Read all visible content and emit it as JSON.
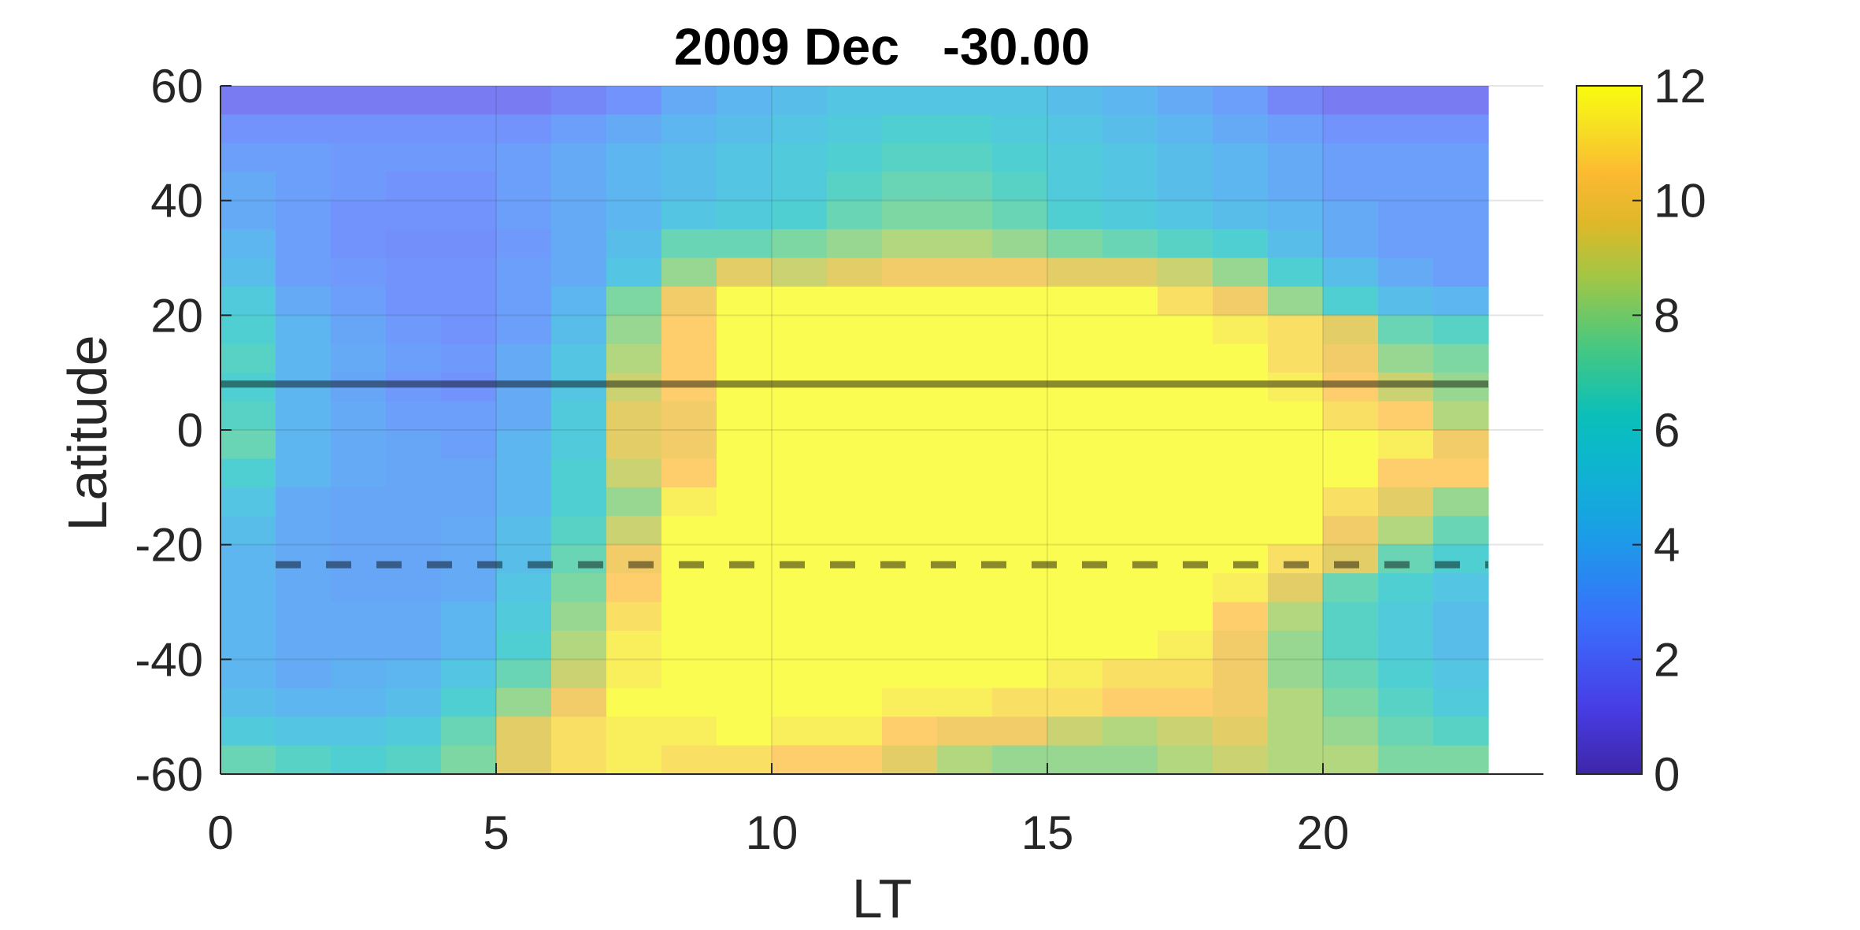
{
  "chart_data": {
    "type": "heatmap",
    "title": "2009 Dec   -30.00",
    "xlabel": "LT",
    "ylabel": "Latitude",
    "xlim": [
      0,
      24
    ],
    "ylim": [
      -60,
      60
    ],
    "data_x_range": [
      0,
      23
    ],
    "x_ticks": [
      0,
      5,
      10,
      15,
      20
    ],
    "y_ticks": [
      -60,
      -40,
      -20,
      0,
      20,
      40,
      60
    ],
    "colorbar": {
      "min": 0,
      "max": 12,
      "ticks": [
        0,
        2,
        4,
        6,
        8,
        10,
        12
      ]
    },
    "colormap": "parula",
    "grid": true,
    "x_centers": [
      0.5,
      1.5,
      2.5,
      3.5,
      4.5,
      5.5,
      6.5,
      7.5,
      8.5,
      9.5,
      10.5,
      11.5,
      12.5,
      13.5,
      14.5,
      15.5,
      16.5,
      17.5,
      18.5,
      19.5,
      20.5,
      21.5,
      22.5
    ],
    "lat_centers": [
      57.5,
      52.5,
      47.5,
      42.5,
      37.5,
      32.5,
      27.5,
      22.5,
      17.5,
      12.5,
      7.5,
      2.5,
      -2.5,
      -7.5,
      -12.5,
      -17.5,
      -22.5,
      -27.5,
      -32.5,
      -37.5,
      -42.5,
      -47.5,
      -52.5,
      -57.5
    ],
    "z": [
      [
        1.5,
        1.5,
        1.5,
        1.5,
        1.5,
        1.5,
        2,
        2.5,
        3.5,
        4,
        4.5,
        5,
        5,
        5,
        5,
        4.5,
        4,
        3.5,
        3,
        2,
        1.5,
        1.5,
        1.5
      ],
      [
        2.5,
        2.5,
        2.5,
        2.5,
        2.5,
        2.5,
        3,
        3.5,
        4,
        4.5,
        5,
        5.5,
        6,
        6,
        5.5,
        5,
        4.5,
        4,
        3.5,
        3,
        2.5,
        2.5,
        2.5
      ],
      [
        3,
        3,
        2.8,
        2.8,
        2.8,
        3,
        3.5,
        4,
        4.5,
        5,
        5.5,
        6,
        6.5,
        6.5,
        6,
        5.5,
        5,
        4.5,
        4,
        3.5,
        3,
        3,
        3
      ],
      [
        3.5,
        3,
        2.8,
        2.5,
        2.5,
        3,
        3.5,
        4,
        4.5,
        5,
        5.5,
        6.5,
        7,
        7,
        6.5,
        5.5,
        5,
        4.5,
        4,
        3.5,
        3,
        3,
        3
      ],
      [
        3.5,
        3,
        2.5,
        2.5,
        2.5,
        3,
        3.5,
        4,
        5,
        5.5,
        6,
        7,
        7.5,
        7.5,
        7,
        6,
        5.5,
        5,
        4.5,
        4,
        3.5,
        3,
        3
      ],
      [
        4,
        3,
        2.5,
        2.3,
        2.3,
        2.8,
        3.5,
        4.5,
        7,
        7,
        7.5,
        8,
        8.5,
        8.5,
        8,
        7.5,
        7,
        6.5,
        6,
        4.5,
        3.5,
        3,
        3
      ],
      [
        4.5,
        3,
        2.8,
        2.5,
        2.5,
        3,
        3.5,
        5,
        8,
        9.5,
        9,
        9.5,
        10,
        10,
        10,
        9.5,
        9.5,
        9,
        8,
        6,
        4.5,
        3.5,
        3
      ],
      [
        5.5,
        3.5,
        3,
        2.5,
        2.5,
        3,
        4,
        7.5,
        10,
        12,
        12,
        12,
        12,
        12,
        12,
        12,
        12,
        11,
        10,
        8,
        6,
        4.5,
        4
      ],
      [
        6,
        4,
        3.3,
        2.8,
        2.5,
        3,
        4.5,
        8,
        10.5,
        12,
        12,
        12,
        12,
        12,
        12,
        12,
        12,
        12,
        11.5,
        11,
        9.5,
        7,
        6.5
      ],
      [
        6.5,
        4,
        3.5,
        3,
        2.8,
        3.5,
        5,
        8.5,
        10.5,
        12,
        12,
        12,
        12,
        12,
        12,
        12,
        12,
        12,
        12,
        11,
        10,
        8,
        7.5
      ],
      [
        6,
        4,
        3.3,
        2.8,
        2.5,
        3.5,
        5,
        9,
        10.5,
        12,
        12,
        12,
        12,
        12,
        12,
        12,
        12,
        12,
        12,
        11.5,
        10.5,
        9,
        8
      ],
      [
        6.5,
        4,
        3.5,
        3,
        3,
        3.5,
        5.5,
        9.5,
        10,
        12,
        12,
        12,
        12,
        12,
        12,
        12,
        12,
        12,
        12,
        12,
        11,
        10.5,
        8.5
      ],
      [
        7,
        4,
        3.5,
        3.3,
        3,
        4,
        5.5,
        9.5,
        10,
        12,
        12,
        12,
        12,
        12,
        12,
        12,
        12,
        12,
        12,
        12,
        12,
        11.5,
        10
      ],
      [
        6,
        4,
        3.5,
        3.3,
        3.3,
        4,
        6,
        9,
        10.5,
        12,
        12,
        12,
        12,
        12,
        12,
        12,
        12,
        12,
        12,
        12,
        12,
        10.5,
        10.5
      ],
      [
        5,
        3.5,
        3.3,
        3.3,
        3.3,
        4,
        6,
        8,
        11.5,
        12,
        12,
        12,
        12,
        12,
        12,
        12,
        12,
        12,
        12,
        12,
        11,
        9.5,
        8
      ],
      [
        4.5,
        3.5,
        3.3,
        3.3,
        3.5,
        4.5,
        6.5,
        9,
        12,
        12,
        12,
        12,
        12,
        12,
        12,
        12,
        12,
        12,
        12,
        12,
        10,
        8.5,
        7
      ],
      [
        4,
        3.5,
        3.3,
        3.3,
        3.5,
        4.5,
        7,
        10,
        12,
        12,
        12,
        12,
        12,
        12,
        12,
        12,
        12,
        12,
        12,
        11,
        9.5,
        7,
        6
      ],
      [
        4,
        3.5,
        3.3,
        3.3,
        3.5,
        5,
        7.5,
        10.5,
        12,
        12,
        12,
        12,
        12,
        12,
        12,
        12,
        12,
        12,
        11.5,
        9.5,
        7,
        6,
        5
      ],
      [
        4,
        3.5,
        3.5,
        3.5,
        4,
        5.5,
        8,
        11,
        12,
        12,
        12,
        12,
        12,
        12,
        12,
        12,
        12,
        12,
        10.5,
        8.5,
        6.5,
        5.5,
        4.5
      ],
      [
        4,
        3.5,
        3.5,
        3.5,
        4,
        6,
        8.5,
        11.5,
        12,
        12,
        12,
        12,
        12,
        12,
        12,
        12,
        12,
        11.5,
        10,
        8,
        6.5,
        5.5,
        4.5
      ],
      [
        4,
        3.5,
        3.8,
        4,
        5,
        7,
        9,
        11.5,
        12,
        12,
        12,
        12,
        12,
        12,
        12,
        11.5,
        11,
        11,
        10,
        8,
        7,
        6,
        5
      ],
      [
        4.5,
        4,
        4,
        4.5,
        6,
        8,
        10,
        12,
        12,
        12,
        12,
        12,
        11.5,
        11.5,
        11,
        11,
        10.5,
        10.5,
        10,
        8.5,
        7.5,
        6.5,
        5.5
      ],
      [
        5.5,
        5,
        5,
        5.5,
        7,
        9.5,
        11,
        11.5,
        11.5,
        12,
        11.5,
        11.5,
        10.5,
        10,
        10,
        9,
        8.5,
        9,
        9.5,
        8.5,
        8,
        7,
        6.5
      ],
      [
        7,
        6.5,
        6,
        6.5,
        7.5,
        9.5,
        11,
        11.5,
        11,
        11,
        10.5,
        10.5,
        9.5,
        8.5,
        8,
        8,
        8,
        8.5,
        9,
        8.5,
        8.5,
        7.5,
        7.5
      ]
    ],
    "hlines": [
      {
        "y": 8,
        "style": "solid",
        "color": "#000000",
        "x_range": [
          0,
          23
        ]
      },
      {
        "y": -23.5,
        "style": "dashed",
        "color": "#000000",
        "x_range": [
          1,
          23
        ]
      }
    ]
  }
}
